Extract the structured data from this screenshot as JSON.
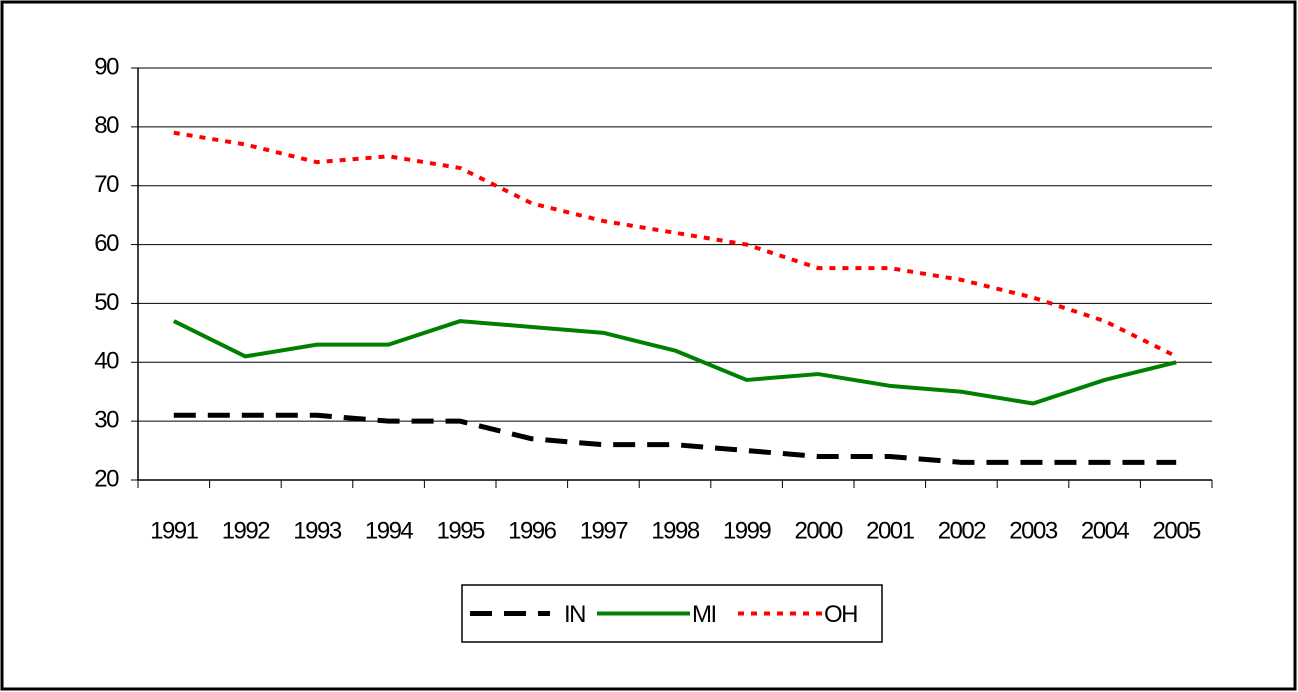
{
  "chart_data": {
    "type": "line",
    "categories": [
      "1991",
      "1992",
      "1993",
      "1994",
      "1995",
      "1996",
      "1997",
      "1998",
      "1999",
      "2000",
      "2001",
      "2002",
      "2003",
      "2004",
      "2005"
    ],
    "series": [
      {
        "name": "IN",
        "color": "#000000",
        "dash": "22,12",
        "values": [
          31,
          31,
          31,
          30,
          30,
          27,
          26,
          26,
          25,
          24,
          24,
          23,
          23,
          23,
          23
        ]
      },
      {
        "name": "MI",
        "color": "#008000",
        "dash": "none",
        "values": [
          47,
          41,
          43,
          43,
          47,
          46,
          45,
          42,
          37,
          38,
          36,
          35,
          33,
          37,
          40
        ]
      },
      {
        "name": "OH",
        "color": "#ff0000",
        "dash": "6,7",
        "values": [
          79,
          77,
          74,
          75,
          73,
          67,
          64,
          62,
          60,
          56,
          56,
          54,
          51,
          47,
          41
        ]
      }
    ],
    "ylim": [
      20,
      90
    ],
    "yticks": [
      20,
      30,
      40,
      50,
      60,
      70,
      80,
      90
    ],
    "grid": true,
    "legend": "bottom"
  }
}
